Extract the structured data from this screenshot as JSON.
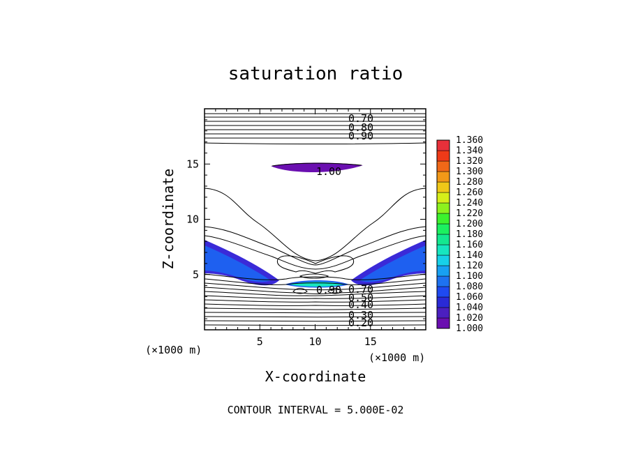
{
  "chart_data": {
    "type": "contour",
    "title": "saturation ratio",
    "xlabel": "X-coordinate",
    "ylabel": "Z-coordinate",
    "x_unit": "(×1000 m)",
    "z_unit": "(×1000 m)",
    "xlim": [
      0,
      20
    ],
    "ylim": [
      0,
      20
    ],
    "x_ticks": [
      5,
      10,
      15
    ],
    "y_ticks": [
      5,
      10,
      15
    ],
    "contour_interval_text": "CONTOUR INTERVAL = 5.000E-02",
    "contour_labels": [
      "0.70",
      "0.80",
      "0.90",
      "1.00",
      "0.90",
      "0.70",
      "0.50",
      "0.40",
      "0.30",
      "0.20"
    ],
    "colorbar": {
      "levels": [
        "1.000",
        "1.020",
        "1.040",
        "1.060",
        "1.080",
        "1.100",
        "1.120",
        "1.140",
        "1.160",
        "1.180",
        "1.200",
        "1.220",
        "1.240",
        "1.260",
        "1.280",
        "1.300",
        "1.320",
        "1.340",
        "1.360"
      ],
      "colors": [
        "#6a0fb0",
        "#4b1fc0",
        "#2a2ad6",
        "#1f4af0",
        "#1e72f0",
        "#18a0f2",
        "#17d0e8",
        "#17e6c0",
        "#14e890",
        "#1cf060",
        "#3cf22e",
        "#8cf21e",
        "#d6ee1a",
        "#f0c818",
        "#f29818",
        "#f06818",
        "#ee3a18",
        "#e8303a",
        "#f07a84"
      ]
    }
  }
}
